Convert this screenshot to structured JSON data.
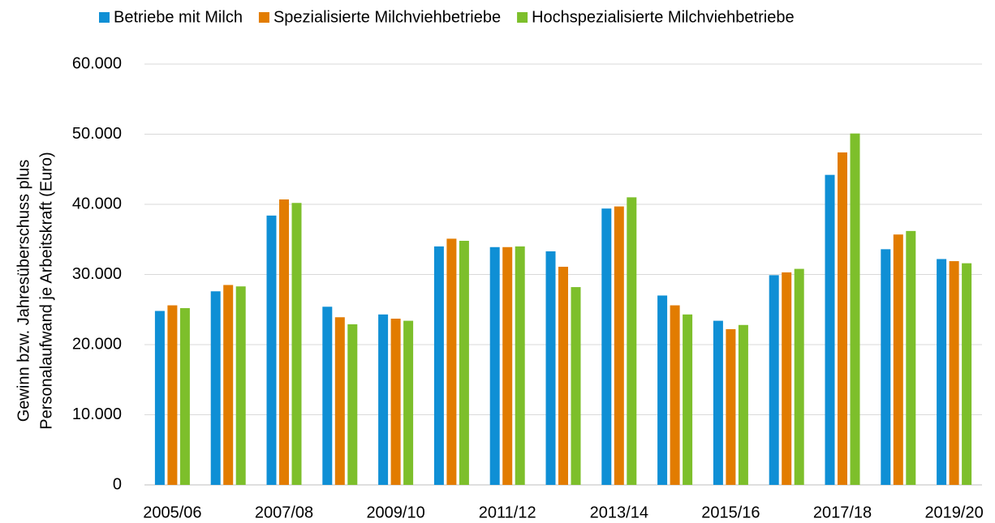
{
  "chart_data": {
    "type": "bar",
    "ylabel": [
      "Gewinn bzw. Jahresüberschuss plus",
      "Personalaufwand je Arbeitskraft (Euro)"
    ],
    "categories": [
      "2005/06",
      null,
      "2007/08",
      null,
      "2009/10",
      null,
      "2011/12",
      null,
      "2013/14",
      null,
      "2015/16",
      null,
      "2017/18",
      null,
      "2019/20"
    ],
    "series": [
      {
        "name": "Betriebe mit Milch",
        "color": "#0f8fd5",
        "values": [
          24800,
          27600,
          38400,
          25400,
          24300,
          34000,
          33900,
          33300,
          39400,
          27000,
          23400,
          29900,
          44200,
          33600,
          32200
        ]
      },
      {
        "name": "Spezialisierte Milchviehbetriebe",
        "color": "#e27c00",
        "values": [
          25600,
          28500,
          40700,
          23900,
          23700,
          35100,
          33900,
          31100,
          39700,
          25600,
          22200,
          30300,
          47400,
          35700,
          31900
        ]
      },
      {
        "name": "Hochspezialisierte Milchviehbetriebe",
        "color": "#7dbf2b",
        "values": [
          25200,
          28300,
          40200,
          22900,
          23400,
          34800,
          34000,
          28200,
          41000,
          24300,
          22800,
          30800,
          50100,
          36200,
          31600
        ]
      }
    ],
    "ylim": [
      0,
      60000
    ],
    "yticks": [
      0,
      {
        "value": 10000,
        "label": "10.000"
      },
      {
        "value": 20000,
        "label": "20.000"
      },
      {
        "value": 30000,
        "label": "30.000"
      },
      {
        "value": 40000,
        "label": "40.000"
      },
      {
        "value": 50000,
        "label": "50.000"
      },
      {
        "value": 60000,
        "label": "60.000"
      }
    ],
    "grid": true,
    "legend": "top"
  }
}
